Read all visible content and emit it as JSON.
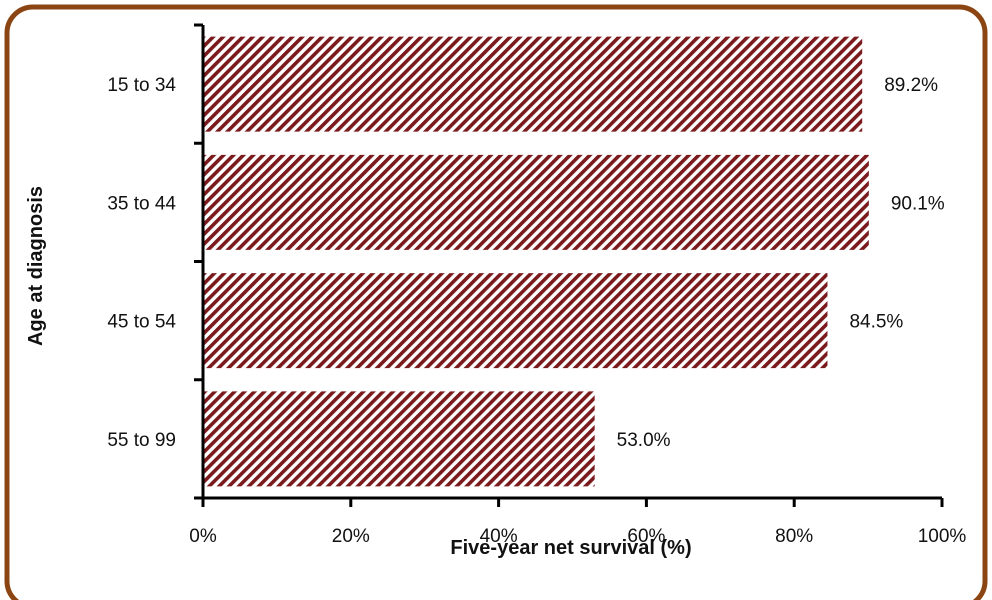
{
  "chart_data": {
    "type": "bar",
    "orientation": "horizontal",
    "categories": [
      "15 to 34",
      "35 to 44",
      "45 to 54",
      "55 to 99"
    ],
    "values": [
      89.2,
      90.1,
      84.5,
      53.0
    ],
    "data_labels": [
      "89.2%",
      "90.1%",
      "84.5%",
      "53.0%"
    ],
    "xlabel": "Five-year net survival (%)",
    "ylabel": "Age at diagnosis",
    "xlim": [
      0,
      100
    ],
    "x_ticks": [
      0,
      20,
      40,
      60,
      80,
      100
    ],
    "x_tick_labels": [
      "0%",
      "20%",
      "40%",
      "60%",
      "80%",
      "100%"
    ],
    "grid": false,
    "legend": "none",
    "colors": {
      "bar": "#7b1a1d",
      "bar_light": "#ffffff",
      "frame": "#8b4513",
      "axis": "#000000"
    }
  }
}
